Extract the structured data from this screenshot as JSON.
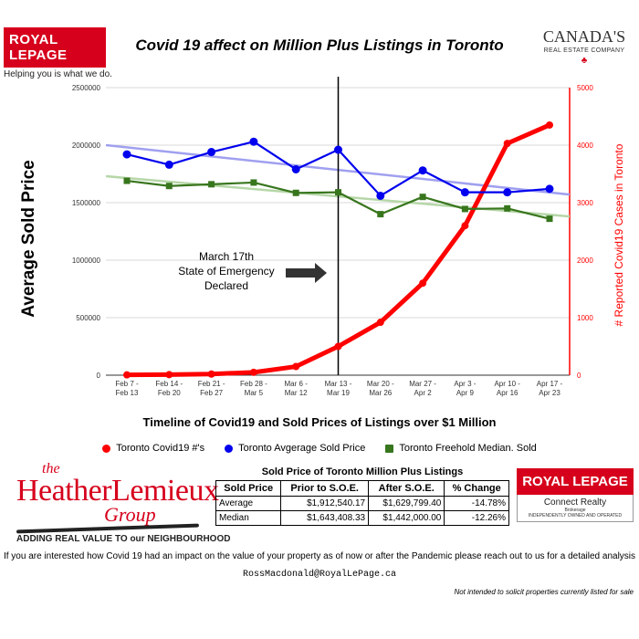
{
  "header": {
    "brand_left": "ROYAL LEPAGE",
    "brand_left_tagline": "Helping you is what we do.",
    "title": "Covid 19 affect on Million Plus Listings in Toronto",
    "brand_right_line1": "CANADA'S",
    "brand_right_line2": "REAL ESTATE COMPANY"
  },
  "chart_data": {
    "type": "line",
    "title": "Timeline of Covid19 and Sold Prices of Listings over $1 Million",
    "categories": [
      [
        "Feb 7 -",
        "Feb 13"
      ],
      [
        "Feb 14 -",
        "Feb 20"
      ],
      [
        "Feb 21 -",
        "Feb 27"
      ],
      [
        "Feb 28 -",
        "Mar 5"
      ],
      [
        "Mar 6 -",
        "Mar 12"
      ],
      [
        "Mar 13 -",
        "Mar 19"
      ],
      [
        "Mar 20 -",
        "Mar 26"
      ],
      [
        "Mar 27 -",
        "Apr 2"
      ],
      [
        "Apr 3 -",
        "Apr 9"
      ],
      [
        "Apr 10 -",
        "Apr 16"
      ],
      [
        "Apr 17 -",
        "Apr 23"
      ]
    ],
    "ylabel_left": "Average Sold Price",
    "ylabel_right": "# Reported Covid19 Cases in Toronto",
    "ylim_left": [
      0,
      2500000
    ],
    "ylim_right": [
      0,
      5000
    ],
    "yticks_left": [
      "0",
      "500000",
      "1000000",
      "1500000",
      "2000000",
      "2500000"
    ],
    "yticks_right": [
      "0",
      "1000",
      "2000",
      "3000",
      "4000",
      "5000"
    ],
    "series": [
      {
        "name": "Toronto  Covid19 #'s",
        "axis": "right",
        "color": "#ff0000",
        "values": [
          5,
          10,
          20,
          50,
          150,
          500,
          920,
          1600,
          2600,
          4030,
          4350
        ]
      },
      {
        "name": "Toronto  Avgerage Sold Price",
        "axis": "left",
        "color": "#0000ee",
        "values": [
          1920000,
          1830000,
          1940000,
          2030000,
          1790000,
          1960000,
          1560000,
          1780000,
          1590000,
          1590000,
          1620000
        ]
      },
      {
        "name": "Toronto  Freehold Median. Sold",
        "axis": "left",
        "color": "#38761d",
        "values": [
          1690000,
          1645000,
          1660000,
          1675000,
          1585000,
          1590000,
          1400000,
          1550000,
          1445000,
          1450000,
          1360000
        ]
      }
    ],
    "trendlines": [
      {
        "series": "Toronto  Avgerage Sold Price",
        "color": "#a0a0f0",
        "start": 2000000,
        "end": 1570000
      },
      {
        "series": "Toronto  Freehold Median. Sold",
        "color": "#b6d7a8",
        "start": 1730000,
        "end": 1380000
      }
    ],
    "annotation": {
      "lines": [
        "March 17th",
        "State of Emergency",
        "Declared"
      ],
      "at_category": "Mar 13 - Mar 19"
    },
    "legend": "bottom"
  },
  "footer_logo": {
    "the": "the",
    "name": "HeatherLemieux",
    "group": "Group",
    "tagline": "ADDING REAL VALUE TO our NEIGHBOURHOOD"
  },
  "table": {
    "title": "Sold Price of Toronto Million Plus Listings",
    "headers": [
      "Sold Price",
      "Prior to S.O.E.",
      "After S.O.E.",
      "% Change"
    ],
    "rows": [
      [
        "Average",
        "$1,912,540.17",
        "$1,629,799.40",
        "-14.78%"
      ],
      [
        "Median",
        "$1,643,408.33",
        "$1,442,000.00",
        "-12.26%"
      ]
    ]
  },
  "brand_box": {
    "name": "ROYAL LEPAGE",
    "office": "Connect Realty",
    "brokerage": "Brokerage",
    "independent": "INDEPENDENTLY OWNED AND OPERATED"
  },
  "footer": {
    "message": "If you are interested how Covid 19 had an impact on the value of your property as of now or after the Pandemic please reach out to us for a detailed analysis",
    "email": "RossMacdonald@RoyalLePage.ca",
    "disclaimer": "Not intended to solicit properties currently listed for sale"
  }
}
